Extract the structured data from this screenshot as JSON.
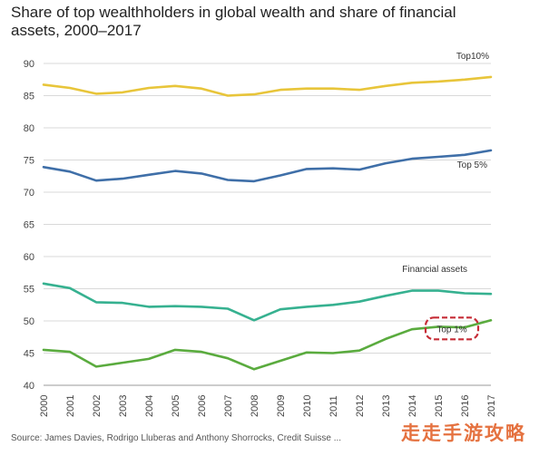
{
  "title": "Share of top wealthholders in global wealth and share of financial assets, 2000–2017",
  "source": "Source: James Davies, Rodrigo Lluberas and Anthony Shorrocks, Credit Suisse ...",
  "watermark": "走走手游攻略",
  "chart_data": {
    "type": "line",
    "title": "Share of top wealthholders in global wealth and share of financial assets, 2000–2017",
    "xlabel": "",
    "ylabel": "",
    "x": [
      2000,
      2001,
      2002,
      2003,
      2004,
      2005,
      2006,
      2007,
      2008,
      2009,
      2010,
      2011,
      2012,
      2013,
      2014,
      2015,
      2016,
      2017
    ],
    "ylim": [
      40,
      90
    ],
    "yticks": [
      40,
      45,
      50,
      55,
      60,
      65,
      70,
      75,
      80,
      85,
      90
    ],
    "grid": true,
    "series": [
      {
        "name": "Top10%",
        "color": "#e8c53a",
        "values": [
          86.7,
          86.2,
          85.3,
          85.5,
          86.2,
          86.5,
          86.1,
          85.0,
          85.2,
          85.9,
          86.1,
          86.1,
          85.9,
          86.5,
          87.0,
          87.2,
          87.5,
          87.9
        ]
      },
      {
        "name": "Top 5%",
        "color": "#3f6fa8",
        "values": [
          73.9,
          73.2,
          71.8,
          72.1,
          72.7,
          73.3,
          72.9,
          71.9,
          71.7,
          72.6,
          73.6,
          73.7,
          73.5,
          74.5,
          75.2,
          75.5,
          75.8,
          76.5
        ]
      },
      {
        "name": "Financial assets",
        "color": "#36b190",
        "values": [
          55.8,
          55.1,
          52.9,
          52.8,
          52.2,
          52.3,
          52.2,
          51.9,
          50.1,
          51.8,
          52.2,
          52.5,
          53.0,
          53.9,
          54.7,
          54.7,
          54.3,
          54.2
        ]
      },
      {
        "name": "Top 1%",
        "color": "#5aab3e",
        "values": [
          45.5,
          45.2,
          42.9,
          43.5,
          44.1,
          45.5,
          45.2,
          44.2,
          42.5,
          43.8,
          45.1,
          45.0,
          45.4,
          47.2,
          48.7,
          49.1,
          49.0,
          50.1
        ]
      }
    ],
    "highlight": "Top 1%",
    "highlight_color": "#c62c36"
  }
}
